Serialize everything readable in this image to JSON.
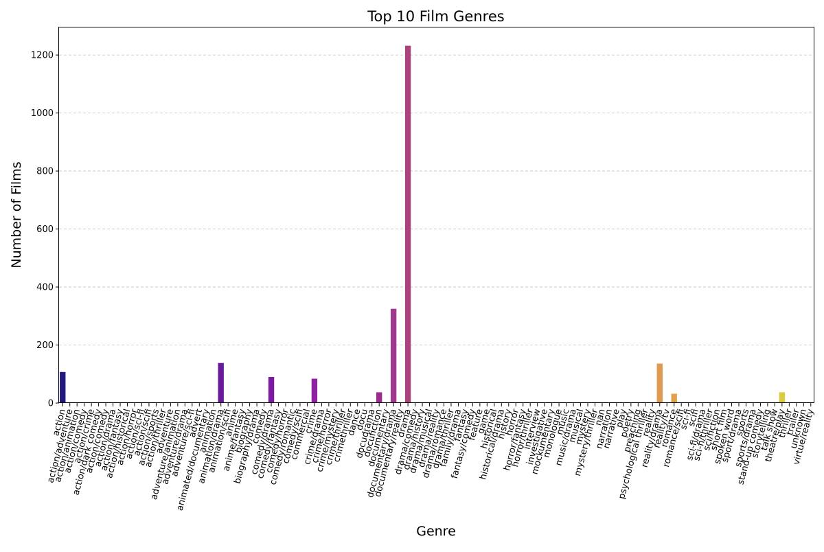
{
  "chart_data": {
    "type": "bar",
    "title": "Top 10 Film Genres",
    "xlabel": "Genre",
    "ylabel": "Number of Films",
    "ylim": [
      0,
      1295
    ],
    "yticks": [
      0,
      200,
      400,
      600,
      800,
      1000,
      1200
    ],
    "grid": "y-dashed",
    "legend": "none",
    "palette": [
      "#0d0887",
      "#46039f",
      "#7201a8",
      "#9c179e",
      "#bd3786",
      "#d8576b",
      "#ed7953",
      "#fb9f3a",
      "#fdca26",
      "#f0f921"
    ],
    "categories": [
      "action",
      "action/adventure",
      "action/animation",
      "action/comedy",
      "action/crime",
      "action/dark comedy",
      "action/comedy",
      "action/drama",
      "action/fantasy",
      "action/historical",
      "action/horror",
      "action/sci-fi",
      "action/scifi",
      "action/sports",
      "action/thriller",
      "adventure",
      "adventure/animation",
      "adventure/drama",
      "adventure/sci-fi",
      "advert",
      "animated/documentary",
      "animation",
      "animation/drama",
      "animation/scifi",
      "anime",
      "anime/fantasy",
      "biography",
      "biography/drama",
      "comedy",
      "comedy/drama",
      "comedy/fantasy",
      "comedy/horror",
      "comedy/romantic",
      "comedy/scifi",
      "commercial",
      "crime",
      "crime/drama",
      "crime/horror",
      "crime/mystery",
      "crime/thriller",
      "crimethriller",
      "dance",
      "docu",
      "docudrama",
      "docufiction",
      "documentary",
      "documentary/drama",
      "documentary/reality",
      "drama",
      "drama/comedy",
      "drama/history",
      "drama/musical",
      "drama/reality",
      "drama/romance",
      "drama/thriller",
      "family/drama",
      "fantasy",
      "fantasy/comedy",
      "feature",
      "game",
      "historical",
      "historical/drama",
      "history",
      "horror",
      "horror/fantasy",
      "horror/thriller",
      "interview",
      "investigative",
      "mockumentary",
      "monologue",
      "music",
      "music/drama",
      "musical",
      "mystery",
      "mystery/thriller",
      "nan",
      "narration",
      "narrative",
      "play",
      "poetry",
      "preaching",
      "psychological thriller",
      "reality",
      "reality/drama",
      "reality/tv",
      "romance",
      "romance/scifi",
      "sci-fi",
      "scifi",
      "sci-fi/drama",
      "sci-fi/thriller",
      "sci/fiction",
      "short film",
      "spoken word",
      "sport/drama",
      "sports",
      "sports/drama",
      "stand-up comedy",
      "storytelling",
      "talk show",
      "theatre/play",
      "thriller",
      "trailer",
      "unknown",
      "virtue/reality"
    ],
    "values": [
      107,
      0,
      0,
      0,
      0,
      0,
      0,
      0,
      0,
      0,
      0,
      0,
      0,
      0,
      0,
      0,
      0,
      0,
      0,
      0,
      0,
      0,
      138,
      0,
      0,
      0,
      0,
      0,
      0,
      90,
      0,
      0,
      0,
      0,
      0,
      84,
      0,
      0,
      0,
      0,
      0,
      0,
      0,
      0,
      37,
      0,
      325,
      0,
      1232,
      0,
      0,
      0,
      0,
      0,
      0,
      0,
      0,
      0,
      0,
      0,
      0,
      0,
      0,
      0,
      0,
      0,
      0,
      0,
      0,
      0,
      0,
      0,
      0,
      0,
      0,
      0,
      0,
      0,
      0,
      0,
      0,
      0,
      0,
      136,
      0,
      32,
      0,
      0,
      0,
      0,
      0,
      0,
      0,
      0,
      0,
      0,
      0,
      0,
      0,
      0,
      37,
      0,
      0,
      0,
      0
    ],
    "bar_colors": [
      "#231a7f",
      "#6a1a9a",
      "#6a1a9a",
      "#6a1a9a",
      "#6a1a9a",
      "#6a1a9a",
      "#6a1a9a",
      "#6a1a9a",
      "#6a1a9a",
      "#6a1a9a",
      "#6a1a9a",
      "#6a1a9a",
      "#6a1a9a",
      "#6a1a9a",
      "#6a1a9a",
      "#6a1a9a",
      "#6a1a9a",
      "#6a1a9a",
      "#6a1a9a",
      "#6a1a9a",
      "#6a1a9a",
      "#6a1a9a",
      "#6a1a9a",
      "#6a1a9a",
      "#6a1a9a",
      "#6a1a9a",
      "#6a1a9a",
      "#6a1a9a",
      "#6a1a9a",
      "#7b1ba2",
      "#7b1ba2",
      "#7b1ba2",
      "#7b1ba2",
      "#7b1ba2",
      "#7b1ba2",
      "#8e22a0",
      "#8e22a0",
      "#8e22a0",
      "#8e22a0",
      "#8e22a0",
      "#8e22a0",
      "#8e22a0",
      "#8e22a0",
      "#8e22a0",
      "#9b2c8e",
      "#a23790",
      "#a23790",
      "#a23790",
      "#a8437c",
      "#a8437c",
      "#a8437c",
      "#a8437c",
      "#a8437c",
      "#a8437c",
      "#a8437c",
      "#a8437c",
      "#a8437c",
      "#a8437c",
      "#a8437c",
      "#a8437c",
      "#a8437c",
      "#a8437c",
      "#a8437c",
      "#a8437c",
      "#a8437c",
      "#a8437c",
      "#a8437c",
      "#a8437c",
      "#a8437c",
      "#a8437c",
      "#a8437c",
      "#a8437c",
      "#a8437c",
      "#a8437c",
      "#a8437c",
      "#a8437c",
      "#a8437c",
      "#a8437c",
      "#a8437c",
      "#a8437c",
      "#a8437c",
      "#a8437c",
      "#a8437c",
      "#e09a50",
      "#e09a50",
      "#e2a04c",
      "#e2a04c",
      "#e2a04c",
      "#e2a04c",
      "#e2a04c",
      "#e2a04c",
      "#e2a04c",
      "#e2a04c",
      "#e2a04c",
      "#e2a04c",
      "#e2a04c",
      "#e2a04c",
      "#e2a04c",
      "#e2a04c",
      "#e2a04c",
      "#dccb3c",
      "#dccb3c",
      "#dccb3c",
      "#dccb3c",
      "#dccb3c"
    ]
  }
}
